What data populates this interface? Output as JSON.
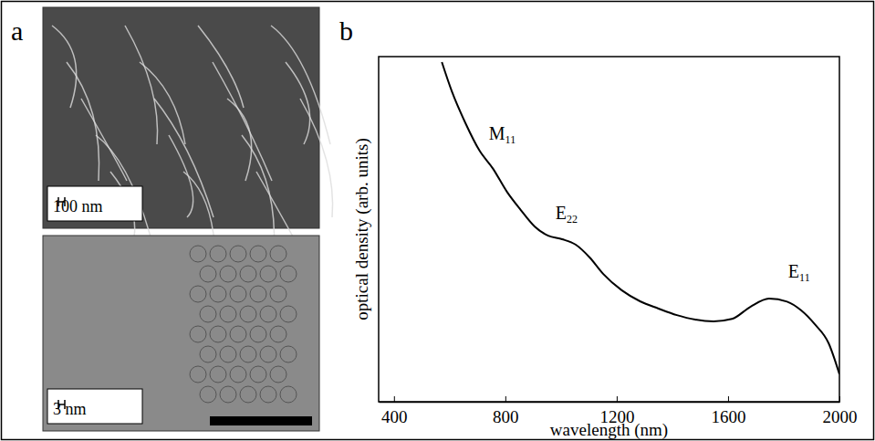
{
  "panel_a": {
    "letter": "a",
    "images": [
      {
        "kind": "SEM",
        "scale_bar": "100 nm"
      },
      {
        "kind": "TEM",
        "scale_bar": "3 nm"
      }
    ]
  },
  "chart_data": {
    "type": "line",
    "letter": "b",
    "x_label": "wavelength (nm)",
    "y_label": "optical density (arb. units)",
    "x": [
      572,
      608,
      657,
      707,
      756,
      806,
      855,
      905,
      954,
      1004,
      1053,
      1103,
      1152,
      1218,
      1284,
      1350,
      1416,
      1482,
      1548,
      1614,
      1680,
      1747,
      1812,
      1862,
      1911,
      1961,
      2000
    ],
    "series": [
      {
        "name": "optical density",
        "color": "#000000",
        "values": [
          0.984,
          0.899,
          0.807,
          0.728,
          0.675,
          0.608,
          0.556,
          0.508,
          0.481,
          0.471,
          0.455,
          0.418,
          0.37,
          0.323,
          0.291,
          0.27,
          0.251,
          0.238,
          0.233,
          0.24,
          0.275,
          0.299,
          0.29,
          0.265,
          0.225,
          0.17,
          0.08
        ]
      }
    ],
    "xlim": [
      345,
      2000
    ],
    "xticks": [
      400,
      800,
      1200,
      1600,
      2000
    ],
    "ylim": [
      0,
      1
    ],
    "tick_labels": "x",
    "annotations": [
      {
        "text": "M",
        "subscript": "11",
        "x": 789,
        "y": 0.76
      },
      {
        "text": "E",
        "subscript": "22",
        "x": 1020,
        "y": 0.53
      },
      {
        "text": "E",
        "subscript": "11",
        "x": 1855,
        "y": 0.36
      }
    ]
  }
}
